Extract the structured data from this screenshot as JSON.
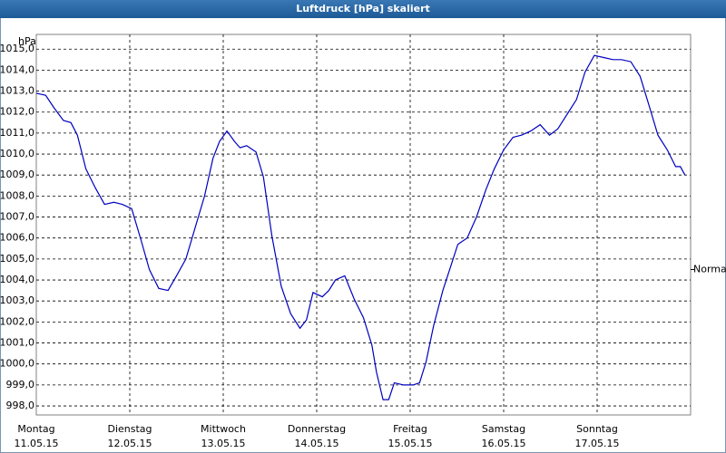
{
  "chart_data": {
    "type": "line",
    "title": "Luftdruck [hPa] skaliert",
    "y_unit": "hPa",
    "xlim": [
      0,
      7
    ],
    "ylim": [
      997.57,
      1015.7
    ],
    "xticks": [
      {
        "value": 0,
        "label": "Montag",
        "date": "11.05.15"
      },
      {
        "value": 1,
        "label": "Dienstag",
        "date": "12.05.15"
      },
      {
        "value": 2,
        "label": "Mittwoch",
        "date": "13.05.15"
      },
      {
        "value": 3,
        "label": "Donnerstag",
        "date": "14.05.15"
      },
      {
        "value": 4,
        "label": "Freitag",
        "date": "15.05.15"
      },
      {
        "value": 5,
        "label": "Samstag",
        "date": "16.05.15"
      },
      {
        "value": 6,
        "label": "Sonntag",
        "date": "17.05.15"
      }
    ],
    "yticks": [
      {
        "value": 998,
        "label": "998,0"
      },
      {
        "value": 999,
        "label": "999,0"
      },
      {
        "value": 1000,
        "label": "1000,0"
      },
      {
        "value": 1001,
        "label": "1001,0"
      },
      {
        "value": 1002,
        "label": "1002,0"
      },
      {
        "value": 1003,
        "label": "1003,0"
      },
      {
        "value": 1004,
        "label": "1004,0"
      },
      {
        "value": 1005,
        "label": "1005,0"
      },
      {
        "value": 1006,
        "label": "1006,0"
      },
      {
        "value": 1007,
        "label": "1007,0"
      },
      {
        "value": 1008,
        "label": "1008,0"
      },
      {
        "value": 1009,
        "label": "1009,0"
      },
      {
        "value": 1010,
        "label": "1010,0"
      },
      {
        "value": 1011,
        "label": "1011,0"
      },
      {
        "value": 1012,
        "label": "1012,0"
      },
      {
        "value": 1013,
        "label": "1013,0"
      },
      {
        "value": 1014,
        "label": "1014,0"
      },
      {
        "value": 1015,
        "label": "1015,0"
      }
    ],
    "grid": true,
    "normal": {
      "value": 1004.5,
      "label": "Normal"
    },
    "x": [
      0,
      0.1,
      0.19,
      0.29,
      0.37,
      0.44,
      0.53,
      0.63,
      0.73,
      0.83,
      0.92,
      1.02,
      1.12,
      1.21,
      1.31,
      1.41,
      1.5,
      1.6,
      1.7,
      1.8,
      1.89,
      1.96,
      2.04,
      2.12,
      2.18,
      2.25,
      2.35,
      2.43,
      2.52,
      2.62,
      2.72,
      2.82,
      2.89,
      2.96,
      3.06,
      3.13,
      3.2,
      3.3,
      3.4,
      3.5,
      3.59,
      3.64,
      3.71,
      3.77,
      3.83,
      3.93,
      4.03,
      4.1,
      4.17,
      4.25,
      4.35,
      4.43,
      4.51,
      4.61,
      4.71,
      4.81,
      4.9,
      5,
      5.1,
      5.19,
      5.29,
      5.39,
      5.49,
      5.58,
      5.68,
      5.78,
      5.87,
      5.97,
      6.07,
      6.17,
      6.26,
      6.36,
      6.46,
      6.55,
      6.65,
      6.75,
      6.84,
      6.89,
      6.94
    ],
    "series": [
      {
        "color": "#0000c0",
        "values": [
          1012.9,
          1012.8,
          1012.2,
          1011.6,
          1011.5,
          1010.9,
          1009.3,
          1008.4,
          1007.6,
          1007.7,
          1007.6,
          1007.4,
          1005.9,
          1004.5,
          1003.6,
          1003.5,
          1004.2,
          1005.0,
          1006.5,
          1008.0,
          1009.8,
          1010.6,
          1011.1,
          1010.6,
          1010.3,
          1010.4,
          1010.1,
          1008.9,
          1006.1,
          1003.7,
          1002.4,
          1001.7,
          1002.1,
          1003.4,
          1003.2,
          1003.5,
          1004.0,
          1004.2,
          1003.1,
          1002.2,
          1000.9,
          999.6,
          998.3,
          998.3,
          999.1,
          999.0,
          999.0,
          999.1,
          1000.1,
          1001.8,
          1003.5,
          1004.6,
          1005.7,
          1006.0,
          1007.0,
          1008.3,
          1009.3,
          1010.2,
          1010.8,
          1010.9,
          1011.1,
          1011.4,
          1010.9,
          1011.2,
          1011.9,
          1012.6,
          1013.9,
          1014.7,
          1014.6,
          1014.5,
          1014.5,
          1014.4,
          1013.7,
          1012.4,
          1010.9,
          1010.2,
          1009.4,
          1009.4,
          1009.0
        ]
      }
    ]
  }
}
